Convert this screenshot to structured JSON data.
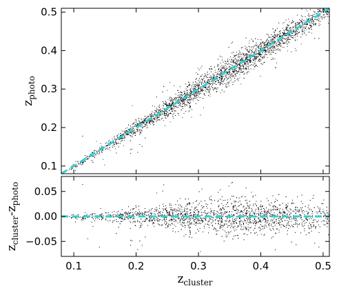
{
  "chart_data": [
    {
      "type": "scatter",
      "title": "",
      "xlabel": "",
      "ylabel": "z",
      "ylabel_sub": "photo",
      "xlim": [
        0.08,
        0.51
      ],
      "ylim": [
        0.08,
        0.51
      ],
      "yticks": [
        0.1,
        0.2,
        0.3,
        0.4,
        0.5
      ],
      "ytick_labels": [
        "0.1",
        "0.2",
        "0.3",
        "0.4",
        "0.5"
      ],
      "xticks": [
        0.1,
        0.2,
        0.3,
        0.4,
        0.5
      ],
      "series": [
        {
          "kind": "points",
          "color": "#000000",
          "density_profile": [
            {
              "x": 0.09,
              "weight": 0.2,
              "spread": 0.004
            },
            {
              "x": 0.15,
              "weight": 0.6,
              "spread": 0.006
            },
            {
              "x": 0.2,
              "weight": 1.0,
              "spread": 0.009
            },
            {
              "x": 0.25,
              "weight": 1.2,
              "spread": 0.012
            },
            {
              "x": 0.3,
              "weight": 1.5,
              "spread": 0.016
            },
            {
              "x": 0.35,
              "weight": 1.9,
              "spread": 0.018
            },
            {
              "x": 0.4,
              "weight": 1.7,
              "spread": 0.016
            },
            {
              "x": 0.45,
              "weight": 1.4,
              "spread": 0.014
            },
            {
              "x": 0.5,
              "weight": 0.9,
              "spread": 0.012
            }
          ]
        },
        {
          "kind": "reference-line",
          "style": "dashed",
          "color": "#2fd0d0",
          "x": [
            0.08,
            0.51
          ],
          "y": [
            0.08,
            0.51
          ]
        }
      ]
    },
    {
      "type": "scatter",
      "title": "",
      "xlabel": "z",
      "xlabel_sub": "cluster",
      "ylabel": "z",
      "ylabel_sub1": "cluster",
      "ylabel_mid": "-z",
      "ylabel_sub2": "photo",
      "xlim": [
        0.08,
        0.51
      ],
      "ylim": [
        -0.08,
        0.08
      ],
      "xticks": [
        0.1,
        0.2,
        0.3,
        0.4,
        0.5
      ],
      "xtick_labels": [
        "0.1",
        "0.2",
        "0.3",
        "0.4",
        "0.5"
      ],
      "yticks": [
        -0.05,
        0.0,
        0.05
      ],
      "ytick_labels": [
        "−0.05",
        "0.00",
        "0.05"
      ],
      "series": [
        {
          "kind": "points",
          "color": "#000000",
          "residual_profile": [
            {
              "x": 0.09,
              "weight": 0.2,
              "spread": 0.003
            },
            {
              "x": 0.15,
              "weight": 0.6,
              "spread": 0.005
            },
            {
              "x": 0.2,
              "weight": 1.0,
              "spread": 0.009
            },
            {
              "x": 0.25,
              "weight": 1.2,
              "spread": 0.012
            },
            {
              "x": 0.3,
              "weight": 1.5,
              "spread": 0.016
            },
            {
              "x": 0.35,
              "weight": 1.9,
              "spread": 0.019
            },
            {
              "x": 0.4,
              "weight": 1.7,
              "spread": 0.017
            },
            {
              "x": 0.45,
              "weight": 1.4,
              "spread": 0.016
            },
            {
              "x": 0.5,
              "weight": 0.9,
              "spread": 0.014
            }
          ]
        },
        {
          "kind": "reference-line",
          "style": "dashed",
          "color": "#2fd0d0",
          "x": [
            0.08,
            0.51
          ],
          "y": [
            0.0,
            0.0
          ]
        }
      ]
    }
  ]
}
